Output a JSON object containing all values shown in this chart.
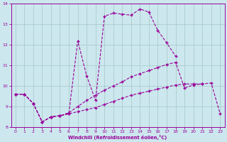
{
  "xlabel": "Windchill (Refroidissement éolien,°C)",
  "background_color": "#cce8ee",
  "grid_color": "#aacccc",
  "line_color": "#990099",
  "x_values": [
    0,
    1,
    2,
    3,
    4,
    5,
    6,
    7,
    8,
    9,
    10,
    11,
    12,
    13,
    14,
    15,
    16,
    17,
    18,
    19,
    20,
    21,
    22,
    23
  ],
  "line1_y": [
    9.6,
    9.6,
    9.15,
    8.25,
    8.5,
    8.55,
    8.65,
    8.75,
    8.85,
    8.95,
    9.1,
    9.25,
    9.4,
    9.55,
    9.65,
    9.75,
    9.85,
    9.95,
    10.05,
    10.1,
    10.1,
    10.1,
    null,
    null
  ],
  "line2_y": [
    9.6,
    9.6,
    9.15,
    8.25,
    8.5,
    8.55,
    8.7,
    9.0,
    9.3,
    9.55,
    9.8,
    10.0,
    10.2,
    10.45,
    10.6,
    10.75,
    10.9,
    11.05,
    11.15,
    9.9,
    10.05,
    10.1,
    10.15,
    8.65
  ],
  "line3_y": [
    9.6,
    9.6,
    9.15,
    8.25,
    8.5,
    8.55,
    8.65,
    12.2,
    10.5,
    9.3,
    13.4,
    13.55,
    13.5,
    13.45,
    13.75,
    13.6,
    12.7,
    12.1,
    11.45,
    null,
    null,
    null,
    null,
    null
  ],
  "ylim": [
    8.0,
    14.0
  ],
  "xlim": [
    -0.5,
    23.5
  ],
  "yticks": [
    8,
    9,
    10,
    11,
    12,
    13,
    14
  ],
  "xticks": [
    0,
    1,
    2,
    3,
    4,
    5,
    6,
    7,
    8,
    9,
    10,
    11,
    12,
    13,
    14,
    15,
    16,
    17,
    18,
    19,
    20,
    21,
    22,
    23
  ]
}
